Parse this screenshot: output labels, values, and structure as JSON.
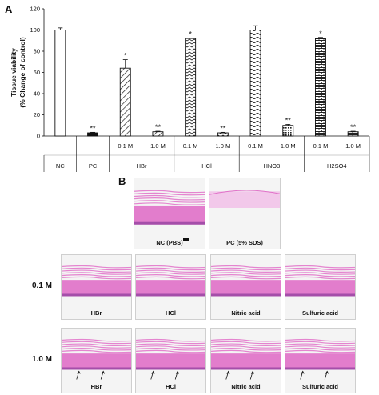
{
  "panel_a_label": "A",
  "panel_b_label": "B",
  "chart_data": {
    "type": "bar",
    "ylabel": "Tissue viability\n(% Change of control)",
    "ylim": [
      0,
      120
    ],
    "yticks": [
      0,
      20,
      40,
      60,
      80,
      100,
      120
    ],
    "bars": [
      {
        "group": "NC",
        "conc": "",
        "value": 100,
        "err": 2,
        "sig": "",
        "pattern": "white"
      },
      {
        "group": "PC",
        "conc": "",
        "value": 3,
        "err": 0.5,
        "sig": "**",
        "pattern": "black"
      },
      {
        "group": "HBr",
        "conc": "0.1 M",
        "value": 64,
        "err": 8,
        "sig": "*",
        "pattern": "diag"
      },
      {
        "group": "HBr",
        "conc": "1.0 M",
        "value": 4,
        "err": 0.5,
        "sig": "**",
        "pattern": "diag"
      },
      {
        "group": "HCl",
        "conc": "0.1 M",
        "value": 92,
        "err": 0.5,
        "sig": "*",
        "pattern": "zigzag"
      },
      {
        "group": "HCl",
        "conc": "1.0 M",
        "value": 3,
        "err": 0.5,
        "sig": "**",
        "pattern": "zigzag"
      },
      {
        "group": "HNO3",
        "conc": "0.1 M",
        "value": 100,
        "err": 4,
        "sig": "",
        "pattern": "wave"
      },
      {
        "group": "HNO3",
        "conc": "1.0 M",
        "value": 10,
        "err": 1,
        "sig": "**",
        "pattern": "dots"
      },
      {
        "group": "H2SO4",
        "conc": "0.1 M",
        "value": 92,
        "err": 1,
        "sig": "*",
        "pattern": "brick"
      },
      {
        "group": "H2SO4",
        "conc": "1.0 M",
        "value": 4,
        "err": 0.5,
        "sig": "**",
        "pattern": "brick"
      }
    ],
    "group_labels": [
      "NC",
      "PC",
      "HBr",
      "HCl",
      "HNO3",
      "H2SO4"
    ]
  },
  "histology": {
    "controls": [
      "NC (PBS)",
      "PC (5% SDS)"
    ],
    "row_labels": [
      "0.1 M",
      "1.0 M"
    ],
    "acid_captions": [
      "HBr",
      "HCl",
      "Nitric acid",
      "Sulfuric acid"
    ]
  },
  "colors": {
    "tissue_pink": "#e070c8",
    "tissue_light": "#f2c8ea",
    "tissue_dark": "#8a3a9a"
  }
}
